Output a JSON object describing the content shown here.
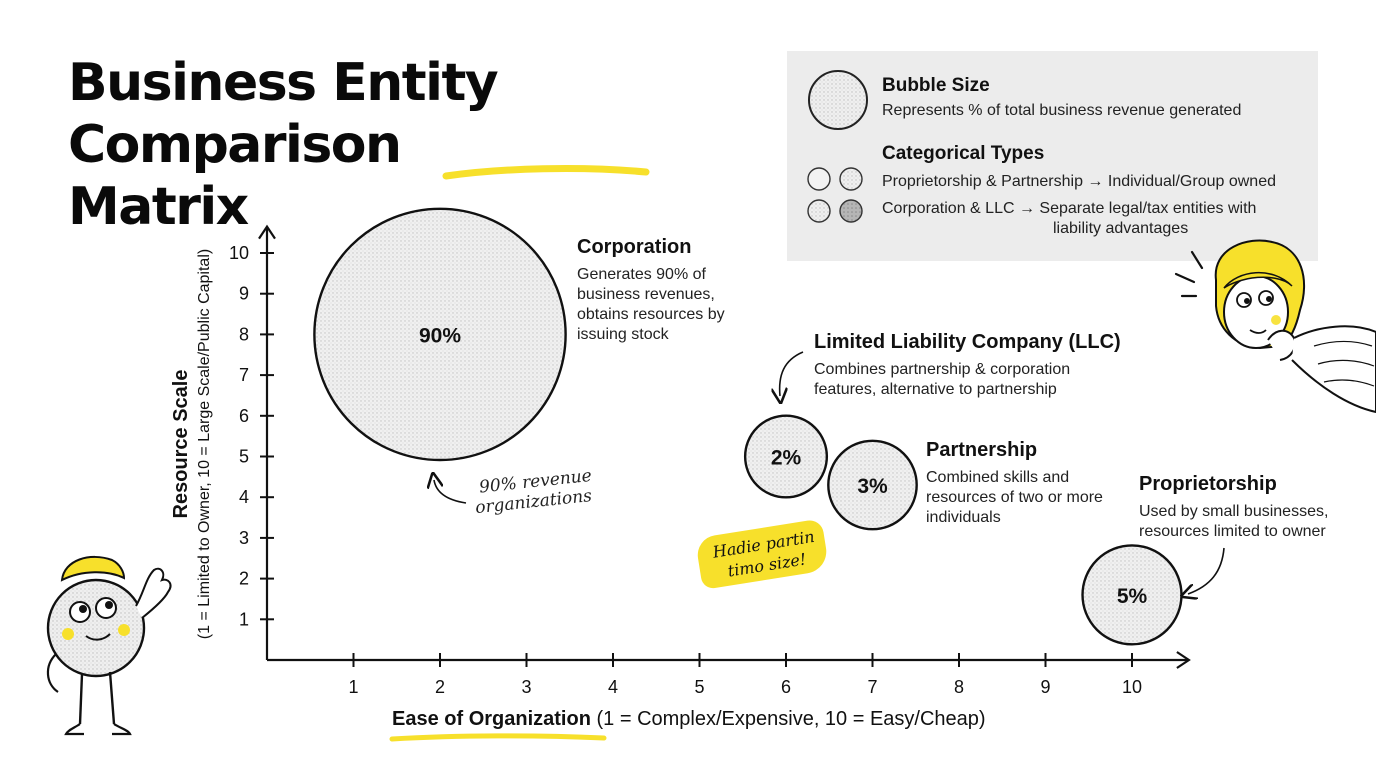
{
  "title": {
    "line1": "Business Entity",
    "line2_prefix": "Comparison ",
    "line2_highlight": "Matrix"
  },
  "legend": {
    "bubble_size_title": "Bubble Size",
    "bubble_size_desc": "Represents % of total business revenue generated",
    "categorical_title": "Categorical Types",
    "row1": "Proprietorship & Partnership → Individual/Group owned",
    "row2_line1": "Corporation & LLC → Separate legal/tax entities with",
    "row2_line2": "liability advantages"
  },
  "labels": {
    "corporation": {
      "name": "Corporation",
      "desc": [
        "Generates 90% of",
        "business revenues,",
        "obtains resources by",
        "issuing stock"
      ]
    },
    "llc": {
      "name": "Limited Liability Company (LLC)",
      "desc": [
        "Combines partnership & corporation",
        "features, alternative to partnership"
      ]
    },
    "partnership": {
      "name": "Partnership",
      "desc": [
        "Combined skills and",
        "resources of two or more",
        "individuals"
      ]
    },
    "proprietorship": {
      "name": "Proprietorship",
      "desc": [
        "Used by small businesses,",
        "resources limited to owner"
      ]
    }
  },
  "annotations": {
    "handwritten_note": [
      "90% revenue",
      "organizations"
    ],
    "sticky_note": [
      "Hadie partin",
      "timo size!"
    ]
  },
  "axes": {
    "x_label_bold": "Ease of Organization",
    "x_label_rest": " (1 = Complex/Expensive, 10 = Easy/Cheap)",
    "y_label_bold": "Resource Scale",
    "y_label_rest": "(1 = Limited to Owner, 10 = Large Scale/Public Capital)"
  },
  "colors": {
    "accent_yellow": "#f7e02b",
    "bubble_fill": "#ebebeb",
    "ink": "#111111"
  },
  "chart_data": {
    "type": "scatter",
    "title": "Business Entity Comparison Matrix",
    "xlabel": "Ease of Organization (1 = Complex/Expensive, 10 = Easy/Cheap)",
    "ylabel": "Resource Scale (1 = Limited to Owner, 10 = Large Scale/Public Capital)",
    "xlim": [
      0,
      10.6
    ],
    "ylim": [
      0,
      10.6
    ],
    "xticks": [
      1,
      2,
      3,
      4,
      5,
      6,
      7,
      8,
      9,
      10
    ],
    "yticks": [
      1,
      2,
      3,
      4,
      5,
      6,
      7,
      8,
      9,
      10
    ],
    "grid": false,
    "legend_position": "top-right",
    "points": [
      {
        "name": "Corporation",
        "x": 2,
        "y": 8,
        "revenue_share": 90,
        "label": "90%"
      },
      {
        "name": "Limited Liability Company (LLC)",
        "x": 6,
        "y": 5,
        "revenue_share": 2,
        "label": "2%"
      },
      {
        "name": "Partnership",
        "x": 7,
        "y": 4.3,
        "revenue_share": 3,
        "label": "3%"
      },
      {
        "name": "Proprietorship",
        "x": 10,
        "y": 1.6,
        "revenue_share": 5,
        "label": "5%"
      }
    ]
  }
}
